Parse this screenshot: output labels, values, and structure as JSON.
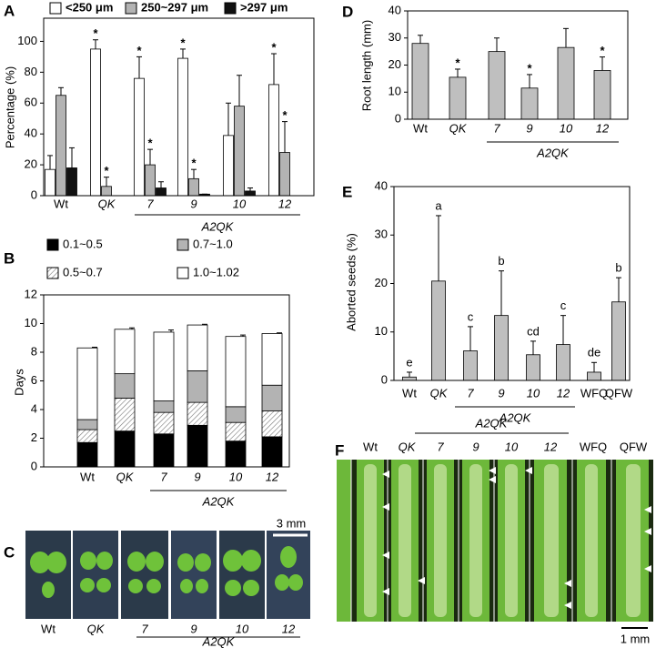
{
  "chart_data": [
    {
      "panel": "A",
      "type": "bar",
      "ylabel": "Percentage (%)",
      "categories": [
        "Wt",
        "QK",
        "7",
        "9",
        "10",
        "12"
      ],
      "group_label": "A2QK",
      "ylim": [
        0,
        115
      ],
      "yticks": [
        0,
        20,
        40,
        60,
        80,
        100
      ],
      "series": [
        {
          "name": "<250 μm",
          "color": "#ffffff",
          "values": [
            17,
            95,
            76,
            89,
            39,
            72
          ],
          "errors": [
            9,
            6,
            14,
            6,
            21,
            20
          ],
          "annotations": [
            null,
            "*",
            "*",
            "*",
            null,
            "*"
          ]
        },
        {
          "name": "250~297 μm",
          "color": "#b3b3b3",
          "values": [
            65,
            6,
            20,
            11,
            58,
            28
          ],
          "errors": [
            5,
            6,
            10,
            6,
            20,
            20
          ],
          "annotations": [
            null,
            "*",
            "*",
            "*",
            null,
            "*"
          ]
        },
        {
          "name": ">297 μm",
          "color": "#111111",
          "values": [
            18,
            0,
            5,
            1,
            3,
            0
          ],
          "errors": [
            13,
            0,
            4,
            0,
            2,
            0
          ]
        }
      ]
    },
    {
      "panel": "B",
      "type": "stacked_bar",
      "ylabel": "Days",
      "categories": [
        "Wt",
        "QK",
        "7",
        "9",
        "10",
        "12"
      ],
      "group_label": "A2QK",
      "ylim": [
        0,
        12
      ],
      "yticks": [
        0,
        2,
        4,
        6,
        8,
        10,
        12
      ],
      "series": [
        {
          "name": "0.1~0.5",
          "color": "#000000",
          "values": [
            1.7,
            2.5,
            2.3,
            2.9,
            1.8,
            2.1
          ],
          "errors": [
            0.15,
            0.15,
            0.4,
            0.05,
            0.3,
            0.1
          ]
        },
        {
          "name": "0.5~0.7",
          "color": "#ffffff",
          "hatch": true,
          "values": [
            0.9,
            2.3,
            1.5,
            1.6,
            1.3,
            1.8
          ],
          "errors": [
            0.3,
            0.3,
            0.6,
            0.05,
            0.3,
            0.3
          ]
        },
        {
          "name": "0.7~1.0",
          "color": "#b3b3b3",
          "values": [
            0.7,
            1.7,
            0.8,
            2.2,
            1.1,
            1.8
          ],
          "errors": [
            0.2,
            0.2,
            0.3,
            0.05,
            0.3,
            0.4
          ]
        },
        {
          "name": "1.0~1.02",
          "color": "#ffffff",
          "values": [
            5.0,
            3.1,
            4.8,
            3.2,
            4.9,
            3.6
          ],
          "errors": [
            0.05,
            0.1,
            0.15,
            0.05,
            0.1,
            0.05
          ]
        }
      ]
    },
    {
      "panel": "D",
      "type": "bar",
      "ylabel": "Root length (mm)",
      "categories": [
        "Wt",
        "QK",
        "7",
        "9",
        "10",
        "12"
      ],
      "group_label": "A2QK",
      "ylim": [
        0,
        40
      ],
      "yticks": [
        0,
        10,
        20,
        30,
        40
      ],
      "series": [
        {
          "color": "#bfbfbf",
          "values": [
            28,
            15.5,
            25,
            11.5,
            26.5,
            18
          ],
          "errors": [
            3,
            3,
            5,
            5,
            7,
            5
          ],
          "annotations": [
            null,
            "*",
            null,
            "*",
            null,
            "*"
          ]
        }
      ]
    },
    {
      "panel": "E",
      "type": "bar",
      "ylabel": "Aborted seeds (%)",
      "categories": [
        "Wt",
        "QK",
        "7",
        "9",
        "10",
        "12",
        "WFQ",
        "QFW"
      ],
      "group_label": "A2QK",
      "ylim": [
        0,
        40
      ],
      "yticks": [
        0,
        10,
        20,
        30,
        40
      ],
      "series": [
        {
          "color": "#bfbfbf",
          "values": [
            0.7,
            20.5,
            6.1,
            13.4,
            5.3,
            7.4,
            1.7,
            16.2
          ],
          "errors": [
            1,
            13.5,
            5,
            9.2,
            2.8,
            6,
            2,
            5
          ],
          "annotations": [
            "e",
            "a",
            "c",
            "b",
            "cd",
            "c",
            "de",
            "b"
          ]
        }
      ]
    }
  ],
  "panel_c": {
    "panel": "C",
    "scale": "3 mm",
    "labels": [
      "Wt",
      "QK",
      "7",
      "9",
      "10",
      "12"
    ],
    "group_label": "A2QK"
  },
  "panel_f": {
    "panel": "F",
    "scale": "1 mm",
    "labels": [
      "Wt",
      "QK",
      "7",
      "9",
      "10",
      "12",
      "WFQ",
      "QFW"
    ],
    "group_label": "A2QK"
  }
}
